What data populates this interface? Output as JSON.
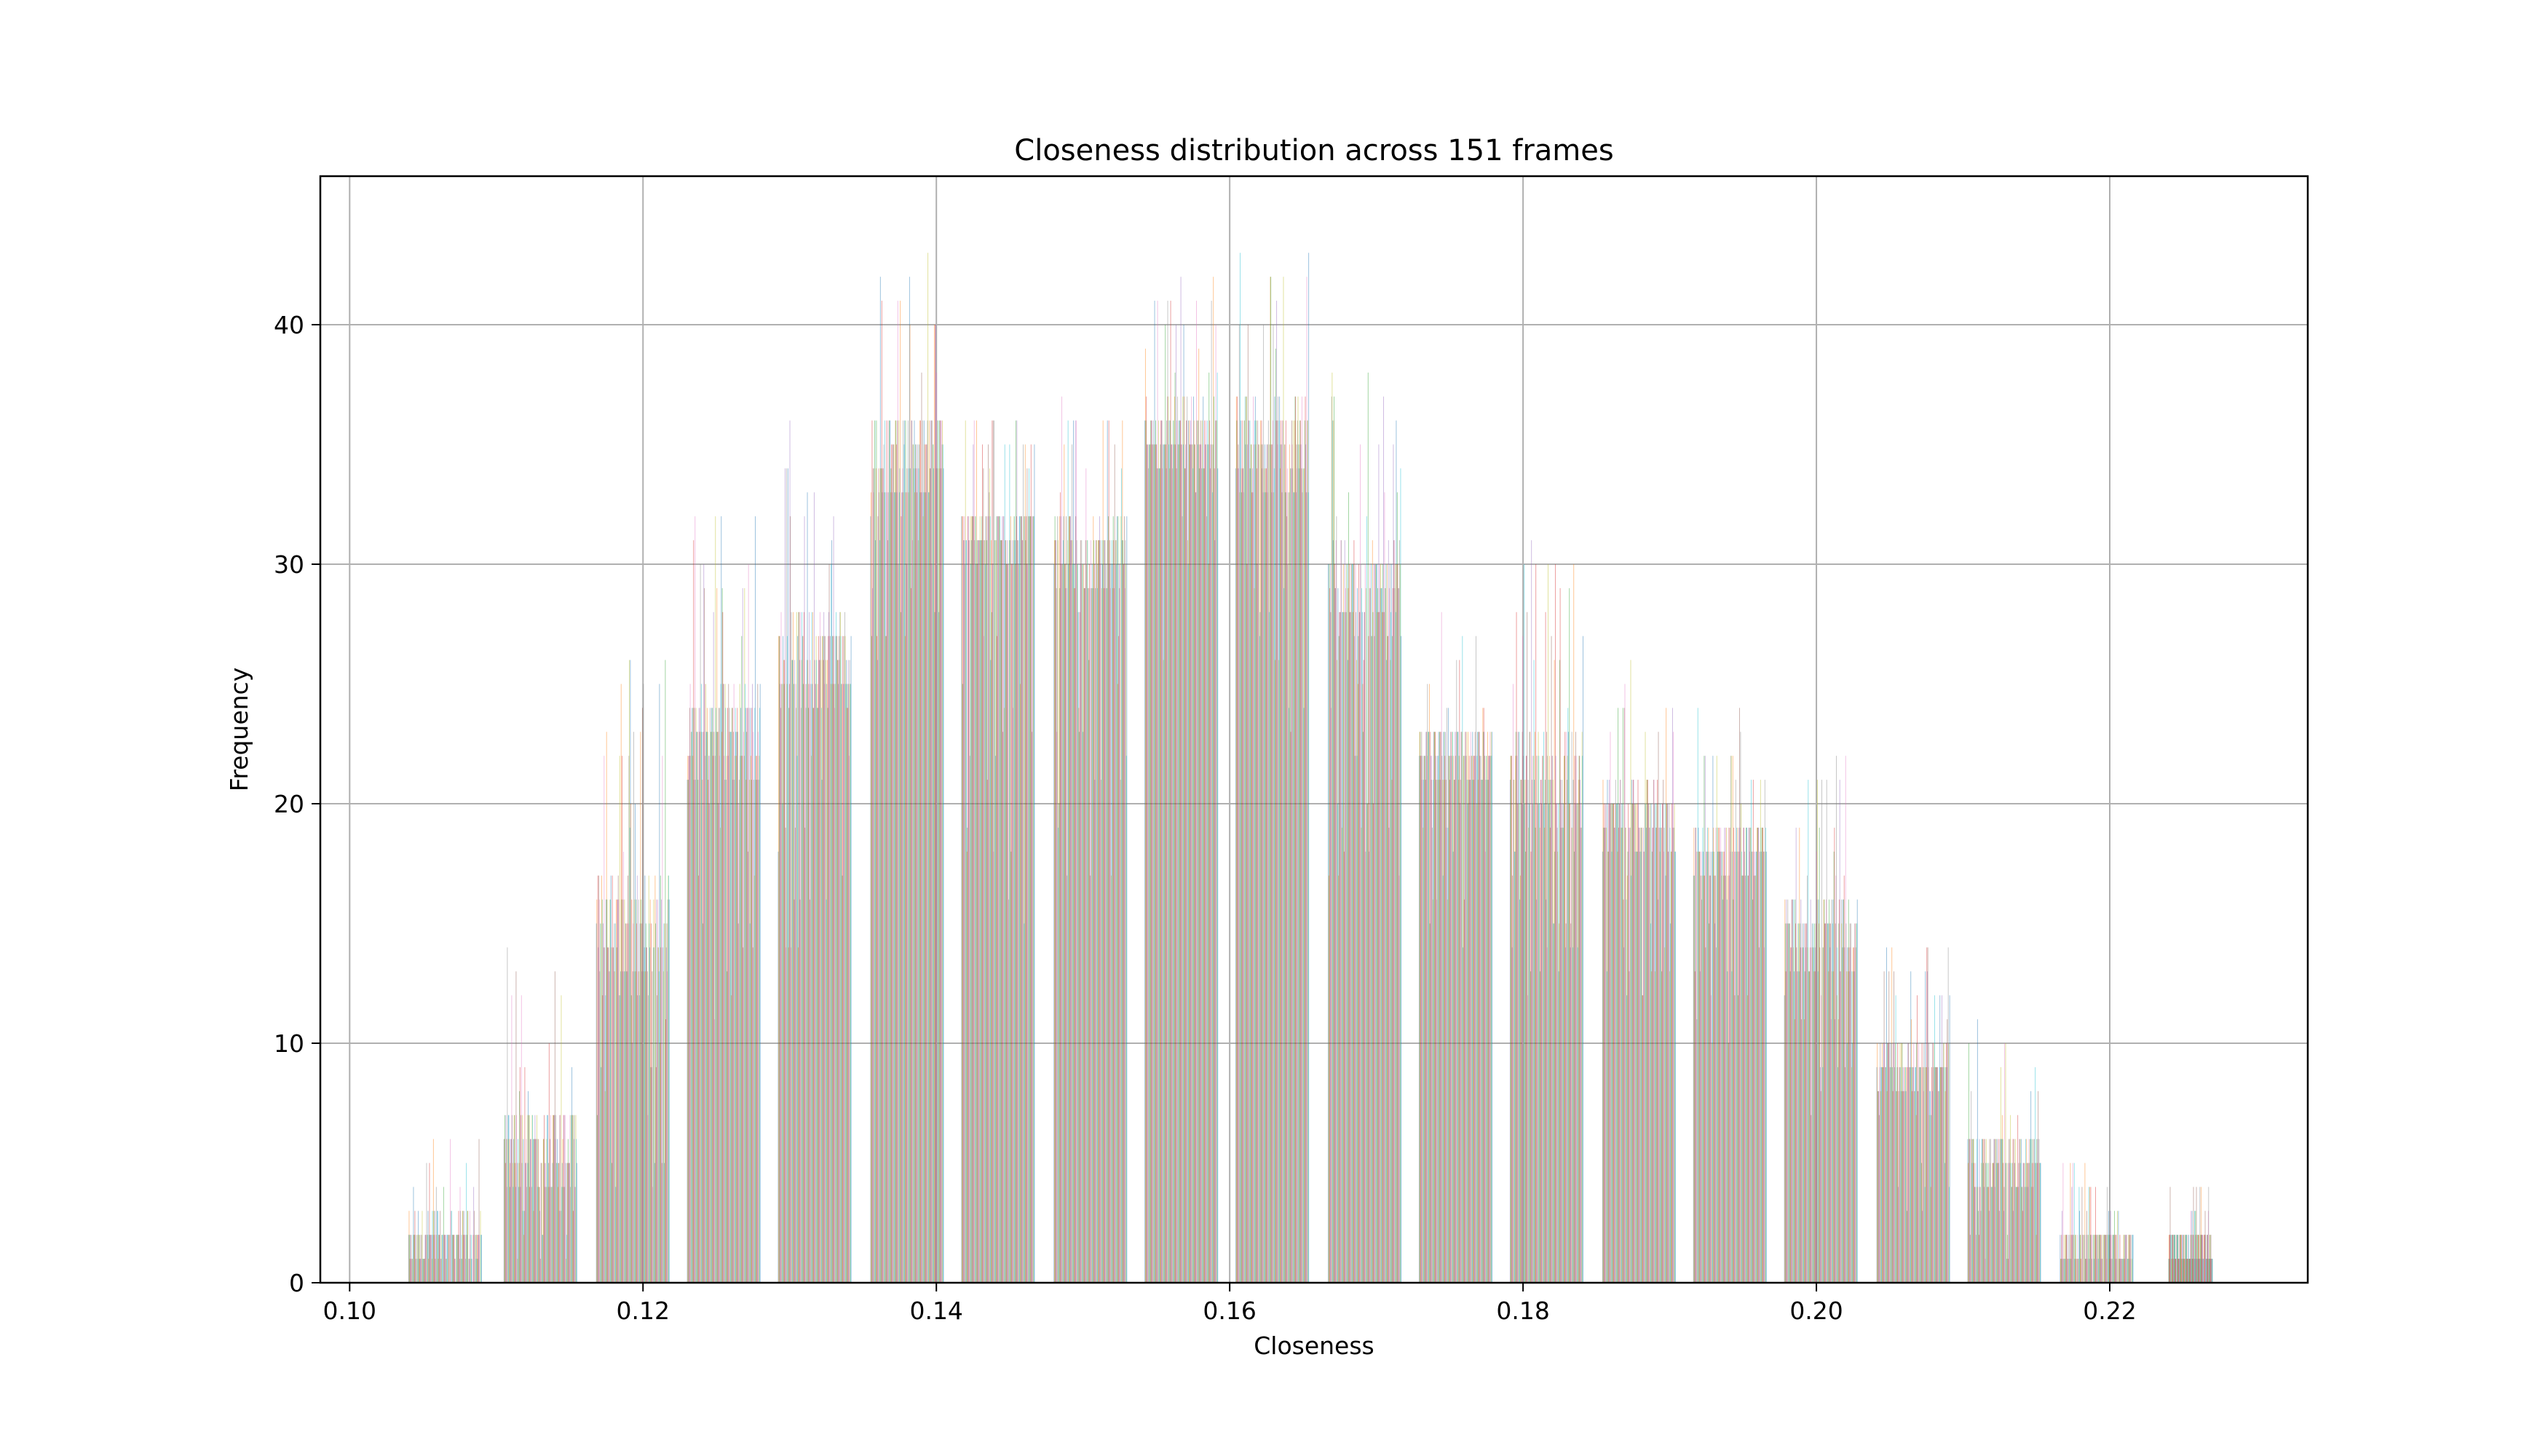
{
  "chart_data": {
    "type": "bar",
    "title": "Closeness distribution across 151 frames",
    "xlabel": "Closeness",
    "ylabel": "Frequency",
    "xlim": [
      0.098,
      0.2335
    ],
    "ylim": [
      0,
      46.2
    ],
    "x_ticks": [
      0.1,
      0.12,
      0.14,
      0.16,
      0.18,
      0.2,
      0.22
    ],
    "x_tick_labels": [
      "0.10",
      "0.12",
      "0.14",
      "0.16",
      "0.18",
      "0.20",
      "0.22"
    ],
    "y_ticks": [
      0,
      10,
      20,
      30,
      40
    ],
    "y_tick_labels": [
      "0",
      "10",
      "20",
      "30",
      "40"
    ],
    "grid": true,
    "legend": "none",
    "histogram_groups": [
      {
        "start": 0.104,
        "end": 0.109,
        "low": 0,
        "high": 6,
        "typical": 1
      },
      {
        "start": 0.1105,
        "end": 0.1155,
        "low": 1,
        "high": 14,
        "typical": 4
      },
      {
        "start": 0.1168,
        "end": 0.1218,
        "low": 4,
        "high": 27,
        "typical": 12
      },
      {
        "start": 0.123,
        "end": 0.128,
        "low": 11,
        "high": 33,
        "typical": 21
      },
      {
        "start": 0.1292,
        "end": 0.1342,
        "low": 14,
        "high": 36,
        "typical": 24
      },
      {
        "start": 0.1355,
        "end": 0.1405,
        "low": 26,
        "high": 43,
        "typical": 33
      },
      {
        "start": 0.1417,
        "end": 0.1467,
        "low": 14,
        "high": 37,
        "typical": 30
      },
      {
        "start": 0.148,
        "end": 0.153,
        "low": 16,
        "high": 37,
        "typical": 29
      },
      {
        "start": 0.1542,
        "end": 0.1592,
        "low": 25,
        "high": 42,
        "typical": 34
      },
      {
        "start": 0.1604,
        "end": 0.1654,
        "low": 22,
        "high": 44,
        "typical": 33
      },
      {
        "start": 0.1667,
        "end": 0.1717,
        "low": 16,
        "high": 38,
        "typical": 27
      },
      {
        "start": 0.1729,
        "end": 0.1779,
        "low": 14,
        "high": 28,
        "typical": 21
      },
      {
        "start": 0.1791,
        "end": 0.1841,
        "low": 12,
        "high": 31,
        "typical": 19
      },
      {
        "start": 0.1854,
        "end": 0.1904,
        "low": 12,
        "high": 26,
        "typical": 18
      },
      {
        "start": 0.1916,
        "end": 0.1966,
        "low": 10,
        "high": 24,
        "typical": 17
      },
      {
        "start": 0.1978,
        "end": 0.2028,
        "low": 7,
        "high": 22,
        "typical": 13
      },
      {
        "start": 0.2041,
        "end": 0.2091,
        "low": 3,
        "high": 14,
        "typical": 8
      },
      {
        "start": 0.2103,
        "end": 0.2153,
        "low": 1,
        "high": 11,
        "typical": 4
      },
      {
        "start": 0.2166,
        "end": 0.2216,
        "low": 0,
        "high": 5,
        "typical": 1
      },
      {
        "start": 0.224,
        "end": 0.227,
        "low": 0,
        "high": 4,
        "typical": 1
      }
    ],
    "series_colors": [
      "#1f77b4",
      "#ff7f0e",
      "#2ca02c",
      "#d62728",
      "#9467bd",
      "#8c564b",
      "#e377c2",
      "#7f7f7f",
      "#bcbd22",
      "#17becf"
    ]
  }
}
